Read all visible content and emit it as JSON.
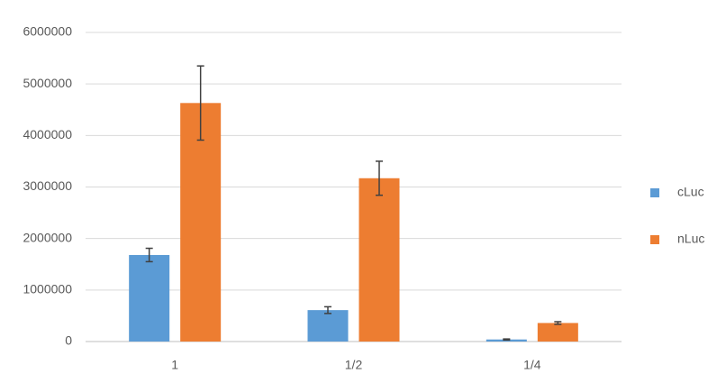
{
  "chart_data": {
    "type": "bar",
    "categories": [
      "1",
      "1/2",
      "1/4"
    ],
    "series": [
      {
        "name": "cLuc",
        "color": "#5b9bd5",
        "values": [
          1680000,
          610000,
          40000
        ],
        "errors": [
          130000,
          65000,
          10000
        ]
      },
      {
        "name": "nLuc",
        "color": "#ed7d31",
        "values": [
          4630000,
          3170000,
          360000
        ],
        "errors": [
          720000,
          330000,
          25000
        ]
      }
    ],
    "ylim": [
      0,
      6000000
    ],
    "yticks": [
      0,
      1000000,
      2000000,
      3000000,
      4000000,
      5000000,
      6000000
    ],
    "grid": true,
    "legend": "right"
  }
}
